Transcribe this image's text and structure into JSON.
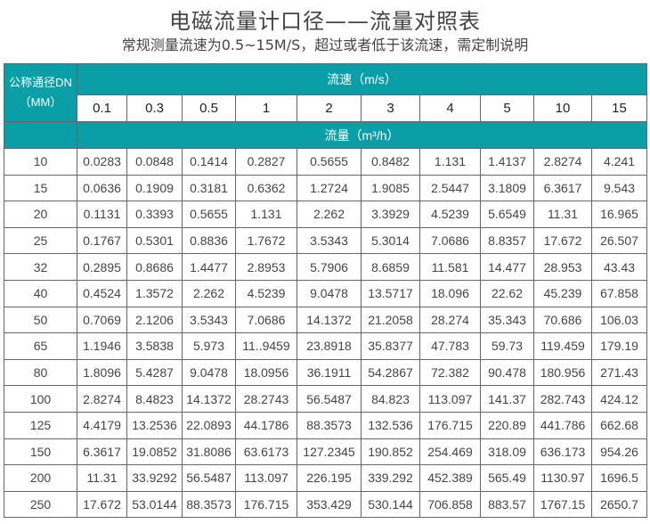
{
  "title": "电磁流量计口径——流量对照表",
  "subtitle": "常规测量流速为0.5~15M/S，超过或者低于该流速，需定制说明",
  "colors": {
    "header_bg": "#0a9fa7",
    "header_text": "#ffffff",
    "border": "#666666"
  },
  "table": {
    "dn_header_line1": "公称通径DN",
    "dn_header_line2": "（MM）",
    "velocity_header": "流速（m/s）",
    "flow_header": "流量（m³/h）",
    "velocities": [
      "0.1",
      "0.3",
      "0.5",
      "1",
      "2",
      "3",
      "4",
      "5",
      "10",
      "15"
    ],
    "rows": [
      {
        "dn": "10",
        "values": [
          "0.0283",
          "0.0848",
          "0.1414",
          "0.2827",
          "0.5655",
          "0.8482",
          "1.131",
          "1.4137",
          "2.8274",
          "4.241"
        ]
      },
      {
        "dn": "15",
        "values": [
          "0.0636",
          "0.1909",
          "0.3181",
          "0.6362",
          "1.2724",
          "1.9085",
          "2.5447",
          "3.1809",
          "6.3617",
          "9.543"
        ]
      },
      {
        "dn": "20",
        "values": [
          "0.1131",
          "0.3393",
          "0.5655",
          "1.131",
          "2.262",
          "3.3929",
          "4.5239",
          "5.6549",
          "11.31",
          "16.965"
        ]
      },
      {
        "dn": "25",
        "values": [
          "0.1767",
          "0.5301",
          "0.8836",
          "1.7672",
          "3.5343",
          "5.3014",
          "7.0686",
          "8.8357",
          "17.672",
          "26.507"
        ]
      },
      {
        "dn": "32",
        "values": [
          "0.2895",
          "0.8686",
          "1.4477",
          "2.8953",
          "5.7906",
          "8.6859",
          "11.581",
          "14.477",
          "28.953",
          "43.43"
        ]
      },
      {
        "dn": "40",
        "values": [
          "0.4524",
          "1.3572",
          "2.262",
          "4.5239",
          "9.0478",
          "13.5717",
          "18.096",
          "22.62",
          "45.239",
          "67.858"
        ]
      },
      {
        "dn": "50",
        "values": [
          "0.7069",
          "2.1206",
          "3.5343",
          "7.0686",
          "14.1372",
          "21.2058",
          "28.274",
          "35.343",
          "70.686",
          "106.03"
        ]
      },
      {
        "dn": "65",
        "values": [
          "1.1946",
          "3.5838",
          "5.973",
          "11..9459",
          "23.8918",
          "35.8377",
          "47.783",
          "59.73",
          "119.459",
          "179.19"
        ]
      },
      {
        "dn": "80",
        "values": [
          "1.8096",
          "5.4287",
          "9.0478",
          "18.0956",
          "36.1911",
          "54.2867",
          "72.382",
          "90.478",
          "180.956",
          "271.43"
        ]
      },
      {
        "dn": "100",
        "values": [
          "2.8274",
          "8.4823",
          "14.1372",
          "28.2743",
          "56.5487",
          "84.823",
          "113.097",
          "141.37",
          "282.743",
          "424.12"
        ]
      },
      {
        "dn": "125",
        "values": [
          "4.4179",
          "13.2536",
          "22.0893",
          "44.1786",
          "88.3573",
          "132.536",
          "176.715",
          "220.89",
          "441.786",
          "662.68"
        ]
      },
      {
        "dn": "150",
        "values": [
          "6.3617",
          "19.0852",
          "31.8086",
          "63.6173",
          "127.2345",
          "190.852",
          "254.469",
          "318.09",
          "636.173",
          "954.26"
        ]
      },
      {
        "dn": "200",
        "values": [
          "11.31",
          "33.9292",
          "56.5487",
          "113.097",
          "226.195",
          "339.292",
          "452.389",
          "565.49",
          "1130.97",
          "1696.5"
        ]
      },
      {
        "dn": "250",
        "values": [
          "17.672",
          "53.0144",
          "88.3573",
          "176.715",
          "353.429",
          "530.144",
          "706.858",
          "883.57",
          "1767.15",
          "2650.7"
        ]
      }
    ]
  }
}
